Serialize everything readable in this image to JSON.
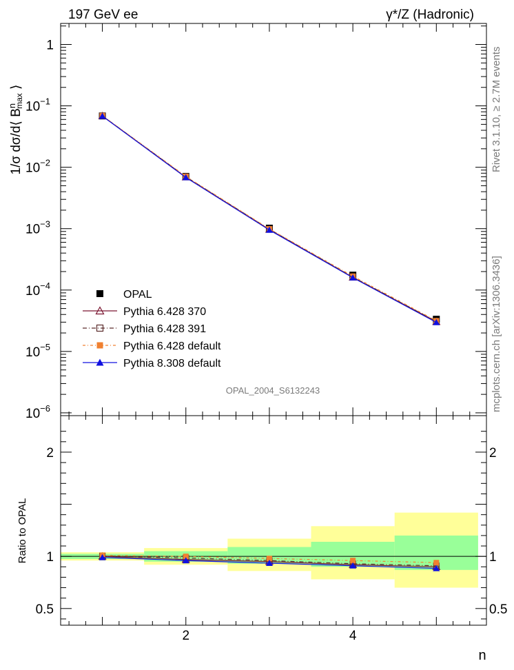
{
  "header": {
    "left": "197 GeV ee",
    "right": "γ*/Z (Hadronic)"
  },
  "side_labels": {
    "rivet": "Rivet 3.1.10, ≥ 2.7M events",
    "mcplots": "mcplots.cern.ch [arXiv:1306.3436]"
  },
  "watermark": "OPAL_2004_S6132243",
  "chart_data": [
    {
      "type": "line",
      "ylabel": "1/σ dσ/d⟨ B^n_max ⟩",
      "yscale": "log",
      "ylim": [
        9e-07,
        2.2
      ],
      "xlim": [
        0.5,
        5.6
      ],
      "yticks": [
        {
          "value": 1,
          "label": "1"
        },
        {
          "value": 0.1,
          "label": "10",
          "exp": "−1"
        },
        {
          "value": 0.01,
          "label": "10",
          "exp": "−2"
        },
        {
          "value": 0.001,
          "label": "10",
          "exp": "−3"
        },
        {
          "value": 0.0001,
          "label": "10",
          "exp": "−4"
        },
        {
          "value": 1e-05,
          "label": "10",
          "exp": "−5"
        },
        {
          "value": 1e-06,
          "label": "10",
          "exp": "−6"
        }
      ],
      "x": [
        1,
        2,
        3,
        4,
        5
      ],
      "legend_placement": "bottom-left",
      "series": [
        {
          "name": "OPAL",
          "color": "#000000",
          "marker": "square-filled",
          "values": [
            0.0685,
            0.0071,
            0.00102,
            0.000175,
            3.35e-05
          ]
        },
        {
          "name": "Pythia 6.428 370",
          "color": "#7a1530",
          "marker": "triangle-open",
          "dash": "solid",
          "values": [
            0.0685,
            0.0069,
            0.00097,
            0.000161,
            3.05e-05
          ]
        },
        {
          "name": "Pythia 6.428 391",
          "color": "#5a2a2a",
          "marker": "square-open",
          "dash": "6,3,1,3",
          "values": [
            0.0688,
            0.007,
            0.00098,
            0.000163,
            3.08e-05
          ]
        },
        {
          "name": "Pythia 6.428 default",
          "color": "#f08030",
          "marker": "square-filled",
          "dash": "4,3,1,3",
          "values": [
            0.0692,
            0.0071,
            0.00099,
            0.000168,
            3.16e-05
          ]
        },
        {
          "name": "Pythia 8.308 default",
          "color": "#1010e0",
          "marker": "triangle-filled",
          "dash": "solid",
          "values": [
            0.068,
            0.0068,
            0.00095,
            0.000159,
            2.97e-05
          ]
        }
      ]
    },
    {
      "type": "line",
      "ylabel": "Ratio to OPAL",
      "xlabel": "n",
      "ylim": [
        0.34,
        2.35
      ],
      "xlim": [
        0.5,
        5.6
      ],
      "yticks": [
        {
          "value": 0.5,
          "label": "0.5"
        },
        {
          "value": 1,
          "label": "1"
        },
        {
          "value": 2,
          "label": "2"
        }
      ],
      "xticks": [
        {
          "value": 2,
          "label": "2"
        },
        {
          "value": 4,
          "label": "4"
        }
      ],
      "bins": [
        [
          0.5,
          1.5
        ],
        [
          1.5,
          2.5
        ],
        [
          2.5,
          3.5
        ],
        [
          3.5,
          4.5
        ],
        [
          4.5,
          5.5
        ]
      ],
      "band_inner": [
        [
          0.975,
          1.025
        ],
        [
          0.95,
          1.05
        ],
        [
          0.93,
          1.09
        ],
        [
          0.9,
          1.14
        ],
        [
          0.87,
          1.2
        ]
      ],
      "band_outer": [
        [
          0.96,
          1.04
        ],
        [
          0.92,
          1.08
        ],
        [
          0.86,
          1.17
        ],
        [
          0.78,
          1.29
        ],
        [
          0.7,
          1.42
        ]
      ],
      "x": [
        1,
        2,
        3,
        4,
        5
      ],
      "series": [
        {
          "name": "Pythia 6.428 370",
          "values": [
            1.0,
            0.97,
            0.95,
            0.92,
            0.9
          ]
        },
        {
          "name": "Pythia 6.428 391",
          "values": [
            1.005,
            0.985,
            0.96,
            0.93,
            0.91
          ]
        },
        {
          "name": "Pythia 6.428 default",
          "values": [
            1.01,
            1.0,
            0.98,
            0.96,
            0.94
          ]
        },
        {
          "name": "Pythia 8.308 default",
          "values": [
            0.99,
            0.96,
            0.935,
            0.91,
            0.885
          ]
        }
      ]
    }
  ]
}
